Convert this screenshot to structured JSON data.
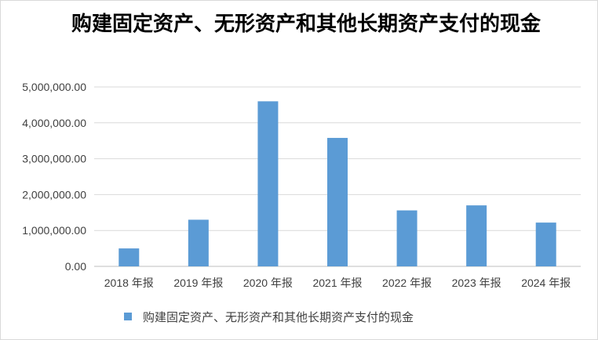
{
  "chart_data": {
    "type": "bar",
    "title": "购建固定资产、无形资产和其他长期资产支付的现金",
    "categories": [
      "2018 年报",
      "2019 年报",
      "2020 年报",
      "2021 年报",
      "2022 年报",
      "2023 年报",
      "2024 年报"
    ],
    "series": [
      {
        "name": "购建固定资产、无形资产和其他长期资产支付的现金",
        "values": [
          500000,
          1300000,
          4600000,
          3580000,
          1560000,
          1700000,
          1220000
        ],
        "color": "#5b9bd5"
      }
    ],
    "yticks": [
      "0.00",
      "1,000,000.00",
      "2,000,000.00",
      "3,000,000.00",
      "4,000,000.00",
      "5,000,000.00"
    ],
    "ylim": [
      0,
      5000000
    ],
    "grid": true,
    "legend_position": "bottom"
  }
}
